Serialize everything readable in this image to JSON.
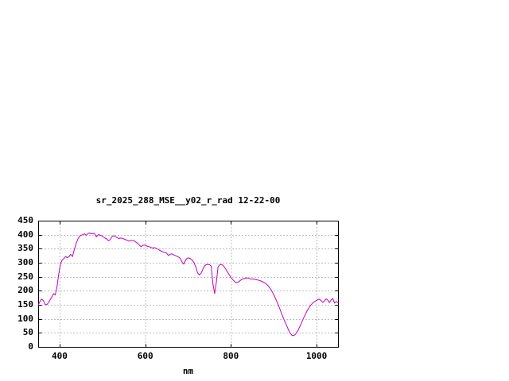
{
  "chart_data": {
    "type": "line",
    "title": "sr_2025_288_MSE__y02_r_rad 12-22-00",
    "xlabel": "nm",
    "ylabel": "",
    "xlim": [
      350,
      1050
    ],
    "ylim": [
      0,
      450
    ],
    "xticks": [
      400,
      600,
      800,
      1000
    ],
    "yticks": [
      0,
      50,
      100,
      150,
      200,
      250,
      300,
      350,
      400,
      450
    ],
    "grid": true,
    "legend": "none",
    "line_color": "#c000c0",
    "axis_color": "#000000",
    "grid_color": "#7f7f7f",
    "background_color": "#ffffff",
    "series": [
      {
        "name": "sr_2025_288_MSE__y02_r_rad",
        "x_start": 350,
        "x_step": 4,
        "x_end": 1050,
        "values": [
          148,
          162,
          170,
          165,
          152,
          150,
          158,
          168,
          178,
          190,
          185,
          215,
          260,
          295,
          310,
          315,
          322,
          318,
          322,
          330,
          322,
          345,
          365,
          382,
          393,
          398,
          400,
          403,
          398,
          404,
          406,
          403,
          405,
          403,
          392,
          400,
          399,
          396,
          392,
          388,
          385,
          378,
          382,
          392,
          396,
          394,
          390,
          386,
          388,
          387,
          385,
          382,
          380,
          377,
          379,
          380,
          378,
          374,
          370,
          363,
          357,
          362,
          363,
          361,
          358,
          357,
          354,
          352,
          354,
          350,
          348,
          344,
          341,
          338,
          336,
          334,
          326,
          330,
          332,
          328,
          326,
          323,
          320,
          315,
          302,
          295,
          310,
          316,
          317,
          314,
          309,
          300,
          285,
          265,
          256,
          262,
          275,
          288,
          293,
          294,
          293,
          288,
          225,
          190,
          230,
          285,
          293,
          294,
          290,
          282,
          272,
          262,
          252,
          244,
          237,
          231,
          229,
          232,
          237,
          241,
          243,
          245,
          246,
          244,
          242,
          242,
          241,
          240,
          239,
          237,
          235,
          232,
          229,
          225,
          219,
          212,
          203,
          192,
          180,
          166,
          152,
          136,
          120,
          104,
          90,
          76,
          62,
          50,
          42,
          40,
          44,
          52,
          63,
          76,
          90,
          104,
          117,
          129,
          139,
          148,
          155,
          160,
          164,
          168,
          170,
          166,
          159,
          163,
          171,
          167,
          158,
          168,
          172,
          156,
          162,
          158
        ]
      }
    ]
  }
}
